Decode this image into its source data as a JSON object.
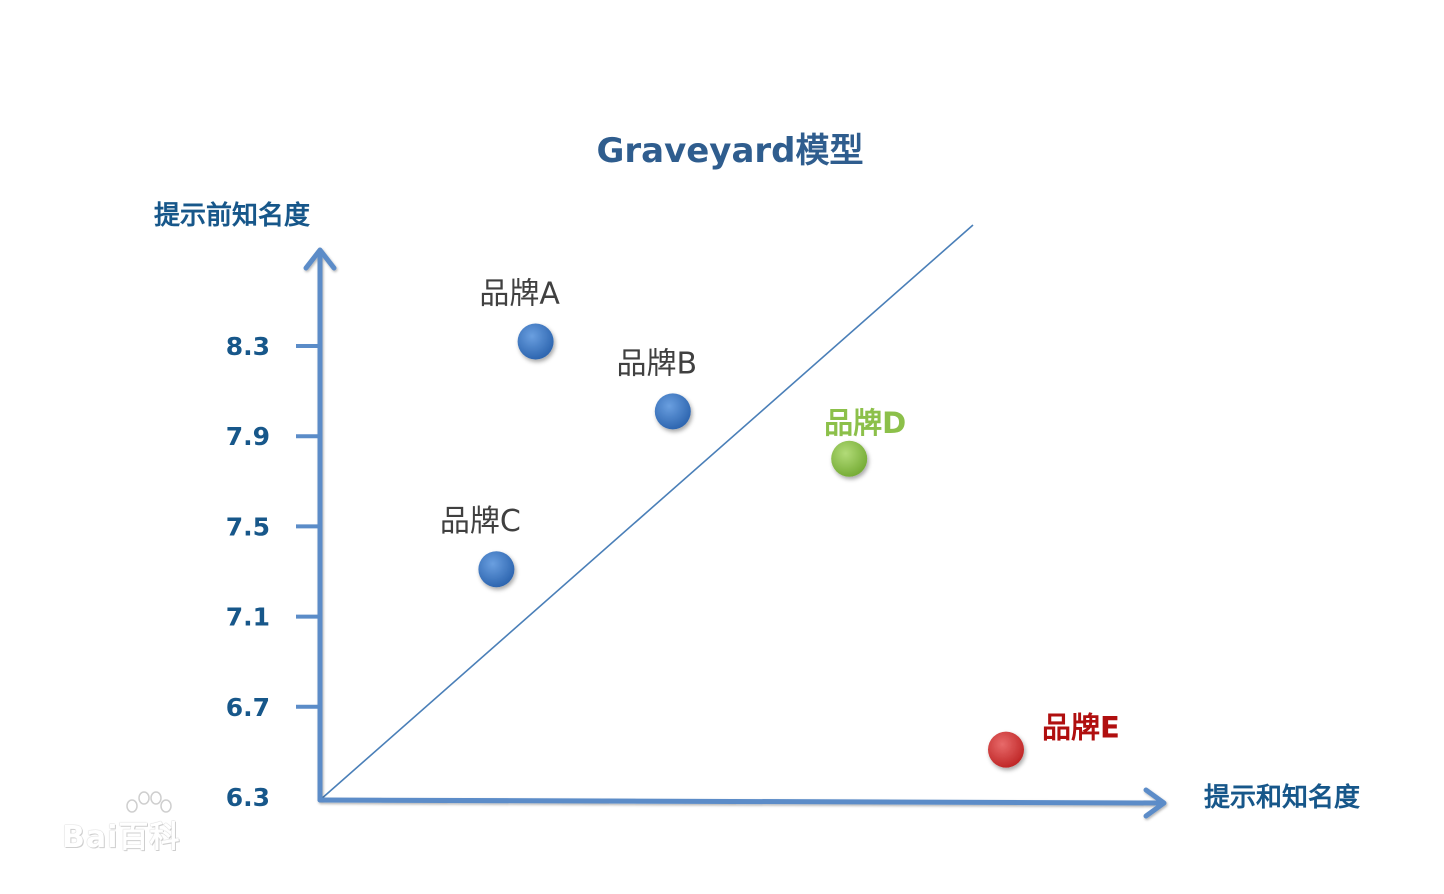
{
  "chart_data": {
    "type": "scatter",
    "title": "Graveyard模型",
    "xlabel": "提示和知名度",
    "ylabel": "提示前知名度",
    "yticks": [
      "8.3",
      "7.9",
      "7.5",
      "7.1",
      "6.7",
      "6.3"
    ],
    "ylim": [
      6.3,
      8.3
    ],
    "xlim": [
      0,
      1
    ],
    "diagonal_line": true,
    "points": [
      {
        "label": "品牌A",
        "x": 0.22,
        "y": 8.32,
        "color": "#3f78c2",
        "label_color": "#404040"
      },
      {
        "label": "品牌B",
        "x": 0.36,
        "y": 8.01,
        "color": "#3f78c2",
        "label_color": "#404040"
      },
      {
        "label": "品牌C",
        "x": 0.18,
        "y": 7.31,
        "color": "#3f78c2",
        "label_color": "#404040"
      },
      {
        "label": "品牌D",
        "x": 0.54,
        "y": 7.8,
        "color": "#8cc04a",
        "label_color": "#8cc04a"
      },
      {
        "label": "品牌E",
        "x": 0.7,
        "y": 6.51,
        "color": "#d03a3a",
        "label_color": "#b00f0f"
      }
    ],
    "axis_color": "#5b8cc8",
    "title_color": "#2f5d8e",
    "axis_label_color": "#17578a",
    "tick_color": "#17578a"
  },
  "watermark": "Bai百科"
}
